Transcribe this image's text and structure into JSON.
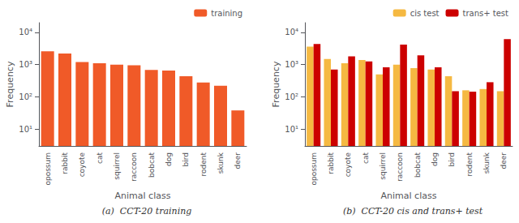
{
  "chart_data": [
    {
      "type": "bar",
      "title": "(a)  CCT-20 training",
      "xlabel": "Animal class",
      "ylabel": "Frequency",
      "categories": [
        "opossum",
        "rabbit",
        "coyote",
        "cat",
        "squirrel",
        "raccoon",
        "bobcat",
        "dog",
        "bird",
        "rodent",
        "skunk",
        "deer"
      ],
      "series": [
        {
          "name": "training",
          "color": "#f05a28",
          "values": [
            2600,
            2200,
            1200,
            1100,
            1000,
            950,
            680,
            660,
            440,
            280,
            220,
            38
          ]
        }
      ],
      "ylim": [
        3,
        20000
      ],
      "yticks": [
        {
          "value": 10,
          "label": "10¹"
        },
        {
          "value": 100,
          "label": "10²"
        },
        {
          "value": 1000,
          "label": "10³"
        },
        {
          "value": 10000,
          "label": "10⁴"
        }
      ],
      "log": "y",
      "legend": "upper right",
      "grid": false
    },
    {
      "type": "bar",
      "title": "(b)  CCT-20 cis and trans+ test",
      "xlabel": "Animal class",
      "ylabel": "Frequency",
      "categories": [
        "opossum",
        "rabbit",
        "coyote",
        "cat",
        "squirrel",
        "raccoon",
        "bobcat",
        "dog",
        "bird",
        "rodent",
        "skunk",
        "deer"
      ],
      "series": [
        {
          "name": "cis test",
          "color": "#f5b942",
          "values": [
            3600,
            1500,
            1100,
            1400,
            500,
            1000,
            780,
            700,
            440,
            160,
            175,
            150
          ]
        },
        {
          "name": "trans+ test",
          "color": "#cc0000",
          "values": [
            4400,
            700,
            1800,
            1250,
            830,
            4200,
            1950,
            830,
            150,
            145,
            285,
            6200
          ]
        }
      ],
      "ylim": [
        3,
        20000
      ],
      "yticks": [
        {
          "value": 10,
          "label": "10¹"
        },
        {
          "value": 100,
          "label": "10²"
        },
        {
          "value": 1000,
          "label": "10³"
        },
        {
          "value": 10000,
          "label": "10⁴"
        }
      ],
      "log": "y",
      "legend": "upper right",
      "grid": false
    }
  ]
}
